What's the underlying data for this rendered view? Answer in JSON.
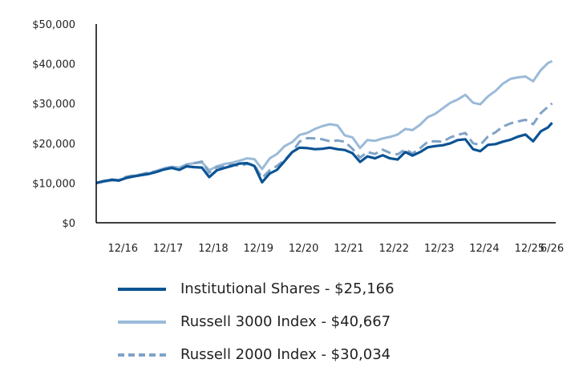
{
  "chart_data": {
    "type": "line",
    "title": "",
    "xlabel": "",
    "ylabel": "",
    "xlim": [
      2016.33,
      2026.5
    ],
    "ylim": [
      0,
      50000
    ],
    "y_ticks": [
      0,
      10000,
      20000,
      30000,
      40000,
      50000
    ],
    "y_tick_labels": [
      "$0",
      "$10,000",
      "$20,000",
      "$30,000",
      "$40,000",
      "$50,000"
    ],
    "x_ticks": [
      2016.92,
      2017.92,
      2018.92,
      2019.92,
      2020.92,
      2021.92,
      2022.92,
      2023.92,
      2024.92,
      2025.92,
      2026.42
    ],
    "x_tick_labels": [
      "12/16",
      "12/17",
      "12/18",
      "12/19",
      "12/20",
      "12/21",
      "12/22",
      "12/23",
      "12/24",
      "12/25",
      "6/26"
    ],
    "grid": false,
    "legend_position": "bottom",
    "series": [
      {
        "name": "Institutional Shares - $25,166",
        "color": "#0b5394",
        "style": "solid",
        "x": [
          2016.33,
          2016.5,
          2016.67,
          2016.83,
          2017.0,
          2017.17,
          2017.33,
          2017.5,
          2017.67,
          2017.83,
          2018.0,
          2018.17,
          2018.33,
          2018.5,
          2018.67,
          2018.83,
          2019.0,
          2019.17,
          2019.33,
          2019.5,
          2019.67,
          2019.83,
          2020.0,
          2020.17,
          2020.33,
          2020.5,
          2020.67,
          2020.83,
          2021.0,
          2021.17,
          2021.33,
          2021.5,
          2021.67,
          2021.83,
          2022.0,
          2022.17,
          2022.33,
          2022.5,
          2022.67,
          2022.83,
          2023.0,
          2023.17,
          2023.33,
          2023.5,
          2023.67,
          2023.83,
          2024.0,
          2024.17,
          2024.33,
          2024.5,
          2024.67,
          2024.83,
          2025.0,
          2025.17,
          2025.33,
          2025.5,
          2025.67,
          2025.83,
          2026.0,
          2026.17,
          2026.33,
          2026.42
        ],
        "values": [
          10000,
          10500,
          10800,
          10600,
          11300,
          11700,
          12000,
          12300,
          12800,
          13400,
          13800,
          13300,
          14200,
          14000,
          13900,
          11500,
          13200,
          13800,
          14300,
          14900,
          15000,
          14300,
          10200,
          12400,
          13300,
          15500,
          17800,
          18900,
          18800,
          18500,
          18600,
          18900,
          18500,
          18300,
          17500,
          15300,
          16700,
          16200,
          17000,
          16200,
          15900,
          17800,
          16900,
          17800,
          19000,
          19300,
          19500,
          20000,
          20800,
          21000,
          18500,
          18000,
          19600,
          19800,
          20400,
          20900,
          21700,
          22200,
          20500,
          23000,
          24000,
          25166
        ]
      },
      {
        "name": "Russell 3000 Index - $40,667",
        "color": "#9bbad8",
        "style": "solid",
        "x": [
          2016.33,
          2016.5,
          2016.67,
          2016.83,
          2017.0,
          2017.17,
          2017.33,
          2017.5,
          2017.67,
          2017.83,
          2018.0,
          2018.17,
          2018.33,
          2018.5,
          2018.67,
          2018.83,
          2019.0,
          2019.17,
          2019.33,
          2019.5,
          2019.67,
          2019.83,
          2020.0,
          2020.17,
          2020.33,
          2020.5,
          2020.67,
          2020.83,
          2021.0,
          2021.17,
          2021.33,
          2021.5,
          2021.67,
          2021.83,
          2022.0,
          2022.17,
          2022.33,
          2022.5,
          2022.67,
          2022.83,
          2023.0,
          2023.17,
          2023.33,
          2023.5,
          2023.67,
          2023.83,
          2024.0,
          2024.17,
          2024.33,
          2024.5,
          2024.67,
          2024.83,
          2025.0,
          2025.17,
          2025.33,
          2025.5,
          2025.67,
          2025.83,
          2026.0,
          2026.17,
          2026.33,
          2026.42
        ],
        "values": [
          10000,
          10300,
          10600,
          10800,
          11300,
          11800,
          12100,
          12500,
          13100,
          13700,
          14100,
          13900,
          14700,
          15000,
          15200,
          13200,
          14200,
          14800,
          15100,
          15600,
          16200,
          16000,
          13500,
          16200,
          17300,
          19300,
          20300,
          22100,
          22600,
          23600,
          24300,
          24800,
          24500,
          22000,
          21500,
          18800,
          20800,
          20600,
          21200,
          21600,
          22200,
          23600,
          23300,
          24700,
          26600,
          27400,
          28800,
          30200,
          31000,
          32200,
          30200,
          29800,
          31800,
          33200,
          35000,
          36200,
          36600,
          36800,
          35600,
          38400,
          40200,
          40667
        ]
      },
      {
        "name": "Russell 2000 Index - $30,034",
        "color": "#7fa3c8",
        "style": "dashed",
        "x": [
          2016.33,
          2016.5,
          2016.67,
          2016.83,
          2017.0,
          2017.17,
          2017.33,
          2017.5,
          2017.67,
          2017.83,
          2018.0,
          2018.17,
          2018.33,
          2018.5,
          2018.67,
          2018.83,
          2019.0,
          2019.17,
          2019.33,
          2019.5,
          2019.67,
          2019.83,
          2020.0,
          2020.17,
          2020.33,
          2020.5,
          2020.67,
          2020.83,
          2021.0,
          2021.17,
          2021.33,
          2021.5,
          2021.67,
          2021.83,
          2022.0,
          2022.17,
          2022.33,
          2022.5,
          2022.67,
          2022.83,
          2023.0,
          2023.17,
          2023.33,
          2023.5,
          2023.67,
          2023.83,
          2024.0,
          2024.17,
          2024.33,
          2024.5,
          2024.67,
          2024.83,
          2025.0,
          2025.17,
          2025.33,
          2025.5,
          2025.67,
          2025.83,
          2026.0,
          2026.17,
          2026.33,
          2026.42
        ],
        "values": [
          10000,
          10400,
          10900,
          10700,
          11600,
          11900,
          12200,
          12700,
          13000,
          13500,
          14000,
          13600,
          14600,
          15000,
          15400,
          12600,
          14000,
          14200,
          14700,
          14300,
          14800,
          14600,
          11300,
          13200,
          14300,
          15800,
          17800,
          20400,
          21300,
          21200,
          21000,
          20500,
          20700,
          20400,
          18600,
          16400,
          17800,
          17300,
          18400,
          17600,
          17200,
          18500,
          17400,
          18800,
          20400,
          20500,
          20400,
          21500,
          22100,
          22600,
          20000,
          19600,
          21700,
          22800,
          24200,
          25000,
          25500,
          25900,
          24800,
          27600,
          29200,
          30034
        ]
      }
    ]
  }
}
